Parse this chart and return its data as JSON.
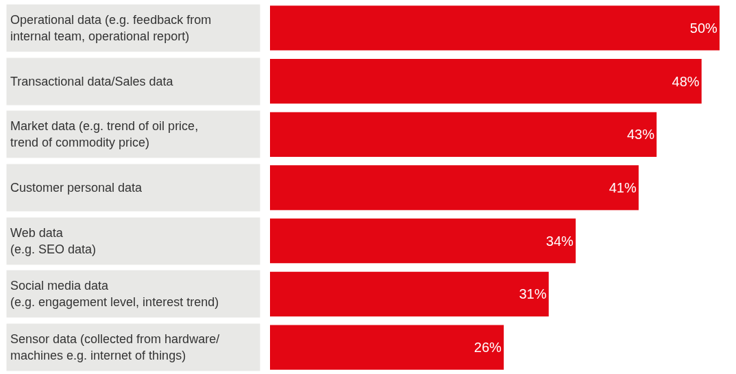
{
  "chart_data": {
    "type": "bar",
    "orientation": "horizontal",
    "categories": [
      "Operational data (e.g. feedback from\ninternal team, operational report)",
      "Transactional data/Sales data",
      "Market data (e.g. trend of oil price,\ntrend of commodity price)",
      "Customer personal data",
      "Web data\n(e.g. SEO data)",
      "Social media data\n(e.g. engagement level, interest trend)",
      "Sensor data (collected from hardware/\nmachines e.g. internet of things)"
    ],
    "values": [
      50,
      48,
      43,
      41,
      34,
      31,
      26
    ],
    "value_labels": [
      "50%",
      "48%",
      "43%",
      "41%",
      "34%",
      "31%",
      "26%"
    ],
    "color": "#e30613",
    "xlim": [
      0,
      50
    ]
  }
}
